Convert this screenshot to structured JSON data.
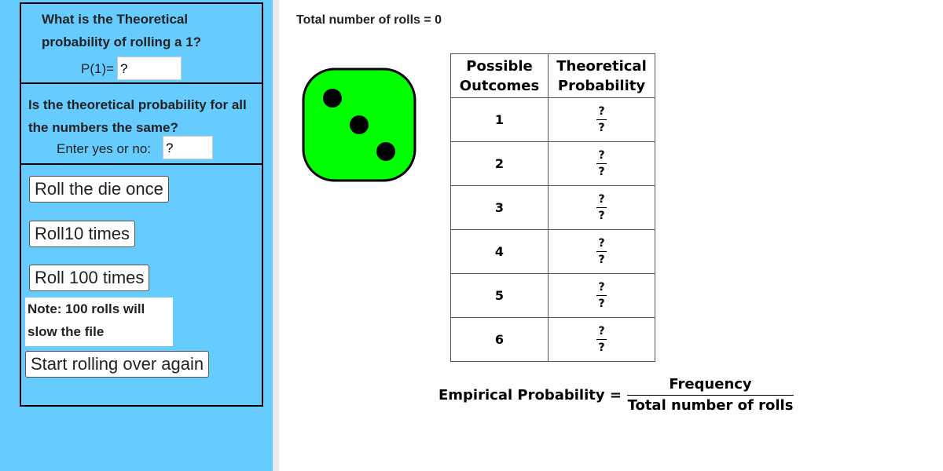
{
  "left_panel": {
    "question1": {
      "text": "What is the Theoretical probability of rolling a 1?",
      "input_label": "P(1)=",
      "input_value": "?"
    },
    "question2": {
      "text": "Is the theoretical probability for all the numbers the same?",
      "input_label": "Enter yes or no:",
      "input_value": "?"
    },
    "buttons": [
      "Roll the die once",
      "Roll10 times",
      "Roll 100 times"
    ],
    "note": "Note: 100 rolls will slow the file",
    "reset_button": "Start rolling over again"
  },
  "total_rolls": {
    "label": "Total number of rolls =",
    "value": 0
  },
  "die": {
    "face": 3
  },
  "table": {
    "headers": [
      "Possible Outcomes",
      "Theoretical Probability"
    ],
    "rows": [
      {
        "outcome": 1,
        "numerator": "?",
        "denominator": "?"
      },
      {
        "outcome": 2,
        "numerator": "?",
        "denominator": "?"
      },
      {
        "outcome": 3,
        "numerator": "?",
        "denominator": "?"
      },
      {
        "outcome": 4,
        "numerator": "?",
        "denominator": "?"
      },
      {
        "outcome": 5,
        "numerator": "?",
        "denominator": "?"
      },
      {
        "outcome": 6,
        "numerator": "?",
        "denominator": "?"
      }
    ]
  },
  "formula": {
    "left": "Empirical Probability =",
    "numerator": "Frequency",
    "denominator": "Total number of rolls"
  }
}
